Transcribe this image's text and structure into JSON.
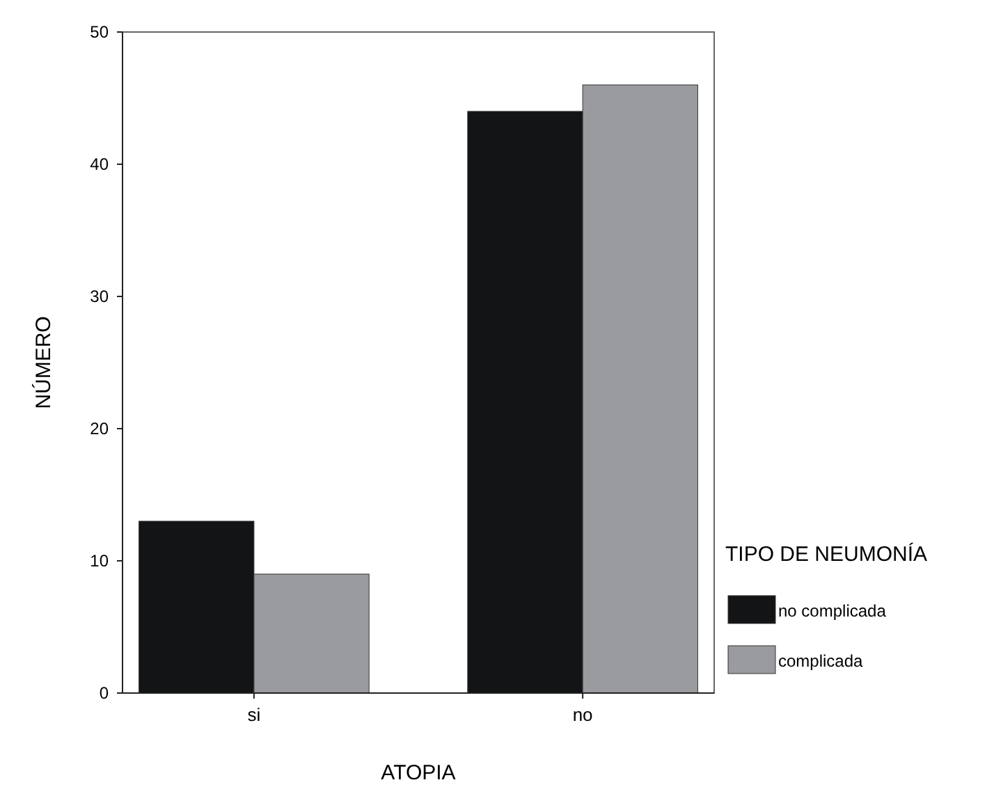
{
  "chart_data": {
    "type": "bar",
    "xlabel": "ATOPIA",
    "ylabel": "NÚMERO",
    "legend_title": "TIPO DE NEUMONÍA",
    "categories": [
      "si",
      "no"
    ],
    "series": [
      {
        "name": "no complicada",
        "color": "#131416",
        "values": [
          13,
          44
        ]
      },
      {
        "name": "complicada",
        "color": "#9a9b9e",
        "values": [
          9,
          46
        ]
      }
    ],
    "ylim": [
      0,
      50
    ],
    "yticks": [
      0,
      10,
      20,
      30,
      40,
      50
    ],
    "legend": "right"
  }
}
